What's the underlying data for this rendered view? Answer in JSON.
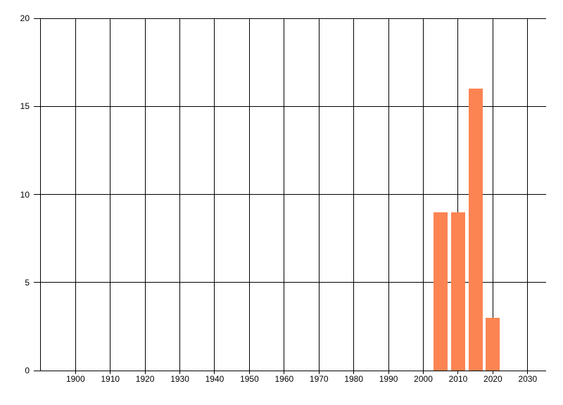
{
  "chart_data": {
    "type": "bar",
    "title": "",
    "xlabel": "",
    "ylabel": "",
    "categories": [
      2005,
      2010,
      2015,
      2020
    ],
    "values": [
      9,
      9,
      16,
      3
    ],
    "bar_color": "#fc8452",
    "background_color": "#ffffff",
    "grid_color": "#000000",
    "text_color": "#000000",
    "grid": "on",
    "legend_position": "none",
    "xlim": [
      1888,
      2035.3
    ],
    "ylim": [
      0,
      20
    ],
    "x_gridline_years": [
      1890,
      1900,
      1910,
      1920,
      1930,
      1940,
      1950,
      1960,
      1970,
      1980,
      1990,
      2000,
      2010,
      2020,
      2030
    ],
    "x_tick_label_years": [
      1900,
      1910,
      1920,
      1930,
      1940,
      1950,
      1960,
      1970,
      1980,
      1990,
      2000,
      2010,
      2020,
      2030
    ],
    "y_tick_values": [
      0,
      5,
      10,
      15,
      20
    ]
  }
}
